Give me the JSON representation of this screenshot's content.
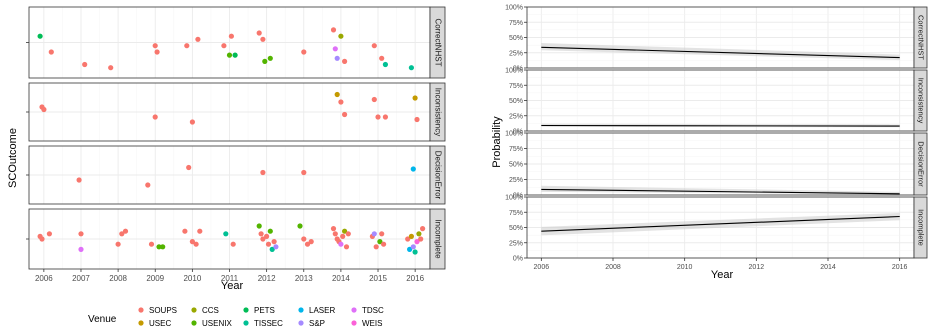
{
  "chart_data": [
    {
      "type": "scatter",
      "ylabel": "SCOutcome",
      "xlabel": "Year",
      "xlim": [
        2005.6,
        2016.4
      ],
      "x_ticks": [
        2006,
        2007,
        2008,
        2009,
        2010,
        2011,
        2012,
        2013,
        2014,
        2015,
        2016
      ],
      "grid": true,
      "legend": {
        "title": "Venue",
        "placement": "bottom",
        "entries": [
          {
            "name": "SOUPS",
            "color": "#F8766D"
          },
          {
            "name": "USEC",
            "color": "#C49A00"
          },
          {
            "name": "CCS",
            "color": "#99A800"
          },
          {
            "name": "USENIX",
            "color": "#53B400"
          },
          {
            "name": "PETS",
            "color": "#00BC56"
          },
          {
            "name": "TISSEC",
            "color": "#00C094"
          },
          {
            "name": "LASER",
            "color": "#00B6EB"
          },
          {
            "name": "S&P",
            "color": "#A58AFF"
          },
          {
            "name": "TDSC",
            "color": "#DF70F8"
          },
          {
            "name": "WEIS",
            "color": "#FB61D7"
          }
        ]
      },
      "facets": [
        {
          "label": "CorrectNHST",
          "points": [
            {
              "x": 2005.9,
              "y": 0.6,
              "venue": "PETS"
            },
            {
              "x": 2006.2,
              "y": 0.35,
              "venue": "SOUPS"
            },
            {
              "x": 2007.1,
              "y": 0.15,
              "venue": "SOUPS"
            },
            {
              "x": 2007.8,
              "y": 0.1,
              "venue": "SOUPS"
            },
            {
              "x": 2009.0,
              "y": 0.45,
              "venue": "SOUPS"
            },
            {
              "x": 2009.05,
              "y": 0.35,
              "venue": "SOUPS"
            },
            {
              "x": 2009.85,
              "y": 0.45,
              "venue": "SOUPS"
            },
            {
              "x": 2010.15,
              "y": 0.55,
              "venue": "SOUPS"
            },
            {
              "x": 2010.85,
              "y": 0.45,
              "venue": "SOUPS"
            },
            {
              "x": 2011.0,
              "y": 0.3,
              "venue": "USENIX"
            },
            {
              "x": 2011.05,
              "y": 0.6,
              "venue": "SOUPS"
            },
            {
              "x": 2011.15,
              "y": 0.3,
              "venue": "PETS"
            },
            {
              "x": 2011.8,
              "y": 0.65,
              "venue": "SOUPS"
            },
            {
              "x": 2011.9,
              "y": 0.55,
              "venue": "SOUPS"
            },
            {
              "x": 2011.95,
              "y": 0.2,
              "venue": "USENIX"
            },
            {
              "x": 2012.1,
              "y": 0.25,
              "venue": "USENIX"
            },
            {
              "x": 2013.0,
              "y": 0.35,
              "venue": "SOUPS"
            },
            {
              "x": 2013.8,
              "y": 0.7,
              "venue": "SOUPS"
            },
            {
              "x": 2013.85,
              "y": 0.4,
              "venue": "TDSC"
            },
            {
              "x": 2013.9,
              "y": 0.25,
              "venue": "S&P"
            },
            {
              "x": 2014.0,
              "y": 0.6,
              "venue": "CCS"
            },
            {
              "x": 2014.1,
              "y": 0.2,
              "venue": "SOUPS"
            },
            {
              "x": 2014.9,
              "y": 0.45,
              "venue": "SOUPS"
            },
            {
              "x": 2015.1,
              "y": 0.25,
              "venue": "SOUPS"
            },
            {
              "x": 2015.2,
              "y": 0.15,
              "venue": "TISSEC"
            },
            {
              "x": 2015.9,
              "y": 0.1,
              "venue": "TISSEC"
            }
          ]
        },
        {
          "label": "Inconsistency",
          "points": [
            {
              "x": 2005.95,
              "y": 0.6,
              "venue": "SOUPS"
            },
            {
              "x": 2006.0,
              "y": 0.55,
              "venue": "SOUPS"
            },
            {
              "x": 2009.0,
              "y": 0.4,
              "venue": "SOUPS"
            },
            {
              "x": 2010.0,
              "y": 0.3,
              "venue": "SOUPS"
            },
            {
              "x": 2013.9,
              "y": 0.85,
              "venue": "USEC"
            },
            {
              "x": 2014.0,
              "y": 0.7,
              "venue": "SOUPS"
            },
            {
              "x": 2014.1,
              "y": 0.45,
              "venue": "SOUPS"
            },
            {
              "x": 2014.9,
              "y": 0.75,
              "venue": "SOUPS"
            },
            {
              "x": 2015.0,
              "y": 0.4,
              "venue": "SOUPS"
            },
            {
              "x": 2015.2,
              "y": 0.4,
              "venue": "SOUPS"
            },
            {
              "x": 2016.0,
              "y": 0.78,
              "venue": "USEC"
            },
            {
              "x": 2016.05,
              "y": 0.35,
              "venue": "SOUPS"
            }
          ]
        },
        {
          "label": "DecisionError",
          "points": [
            {
              "x": 2006.95,
              "y": 0.4,
              "venue": "SOUPS"
            },
            {
              "x": 2008.8,
              "y": 0.3,
              "venue": "SOUPS"
            },
            {
              "x": 2009.9,
              "y": 0.65,
              "venue": "SOUPS"
            },
            {
              "x": 2011.9,
              "y": 0.55,
              "venue": "SOUPS"
            },
            {
              "x": 2013.0,
              "y": 0.55,
              "venue": "SOUPS"
            },
            {
              "x": 2015.95,
              "y": 0.62,
              "venue": "LASER"
            }
          ]
        },
        {
          "label": "Incomplete",
          "points": [
            {
              "x": 2005.9,
              "y": 0.55,
              "venue": "SOUPS"
            },
            {
              "x": 2005.95,
              "y": 0.5,
              "venue": "SOUPS"
            },
            {
              "x": 2006.15,
              "y": 0.6,
              "venue": "SOUPS"
            },
            {
              "x": 2007.0,
              "y": 0.6,
              "venue": "SOUPS"
            },
            {
              "x": 2007.0,
              "y": 0.3,
              "venue": "TDSC"
            },
            {
              "x": 2008.0,
              "y": 0.4,
              "venue": "SOUPS"
            },
            {
              "x": 2008.1,
              "y": 0.6,
              "venue": "SOUPS"
            },
            {
              "x": 2008.2,
              "y": 0.65,
              "venue": "SOUPS"
            },
            {
              "x": 2008.9,
              "y": 0.4,
              "venue": "SOUPS"
            },
            {
              "x": 2009.1,
              "y": 0.35,
              "venue": "USENIX"
            },
            {
              "x": 2009.2,
              "y": 0.35,
              "venue": "USENIX"
            },
            {
              "x": 2009.8,
              "y": 0.65,
              "venue": "SOUPS"
            },
            {
              "x": 2010.0,
              "y": 0.45,
              "venue": "SOUPS"
            },
            {
              "x": 2010.1,
              "y": 0.4,
              "venue": "SOUPS"
            },
            {
              "x": 2010.2,
              "y": 0.65,
              "venue": "SOUPS"
            },
            {
              "x": 2010.9,
              "y": 0.6,
              "venue": "TISSEC"
            },
            {
              "x": 2011.1,
              "y": 0.4,
              "venue": "SOUPS"
            },
            {
              "x": 2011.8,
              "y": 0.75,
              "venue": "USENIX"
            },
            {
              "x": 2011.85,
              "y": 0.6,
              "venue": "SOUPS"
            },
            {
              "x": 2011.9,
              "y": 0.5,
              "venue": "SOUPS"
            },
            {
              "x": 2012.0,
              "y": 0.55,
              "venue": "SOUPS"
            },
            {
              "x": 2012.05,
              "y": 0.4,
              "venue": "SOUPS"
            },
            {
              "x": 2012.1,
              "y": 0.65,
              "venue": "USENIX"
            },
            {
              "x": 2012.15,
              "y": 0.3,
              "venue": "TISSEC"
            },
            {
              "x": 2012.2,
              "y": 0.45,
              "venue": "SOUPS"
            },
            {
              "x": 2012.25,
              "y": 0.35,
              "venue": "S&P"
            },
            {
              "x": 2012.9,
              "y": 0.75,
              "venue": "USENIX"
            },
            {
              "x": 2013.0,
              "y": 0.5,
              "venue": "SOUPS"
            },
            {
              "x": 2013.1,
              "y": 0.4,
              "venue": "SOUPS"
            },
            {
              "x": 2013.2,
              "y": 0.45,
              "venue": "SOUPS"
            },
            {
              "x": 2013.8,
              "y": 0.7,
              "venue": "SOUPS"
            },
            {
              "x": 2013.85,
              "y": 0.6,
              "venue": "SOUPS"
            },
            {
              "x": 2013.9,
              "y": 0.5,
              "venue": "SOUPS"
            },
            {
              "x": 2013.95,
              "y": 0.45,
              "venue": "SOUPS"
            },
            {
              "x": 2014.0,
              "y": 0.4,
              "venue": "TDSC"
            },
            {
              "x": 2014.05,
              "y": 0.55,
              "venue": "SOUPS"
            },
            {
              "x": 2014.1,
              "y": 0.65,
              "venue": "CCS"
            },
            {
              "x": 2014.15,
              "y": 0.35,
              "venue": "SOUPS"
            },
            {
              "x": 2014.2,
              "y": 0.6,
              "venue": "SOUPS"
            },
            {
              "x": 2014.85,
              "y": 0.55,
              "venue": "SOUPS"
            },
            {
              "x": 2014.9,
              "y": 0.6,
              "venue": "S&P"
            },
            {
              "x": 2014.95,
              "y": 0.35,
              "venue": "SOUPS"
            },
            {
              "x": 2015.05,
              "y": 0.45,
              "venue": "USENIX"
            },
            {
              "x": 2015.1,
              "y": 0.6,
              "venue": "SOUPS"
            },
            {
              "x": 2015.15,
              "y": 0.4,
              "venue": "SOUPS"
            },
            {
              "x": 2015.8,
              "y": 0.5,
              "venue": "SOUPS"
            },
            {
              "x": 2015.85,
              "y": 0.3,
              "venue": "LASER"
            },
            {
              "x": 2015.9,
              "y": 0.55,
              "venue": "USEC"
            },
            {
              "x": 2015.95,
              "y": 0.35,
              "venue": "S&P"
            },
            {
              "x": 2016.0,
              "y": 0.25,
              "venue": "TISSEC"
            },
            {
              "x": 2016.05,
              "y": 0.45,
              "venue": "WEIS"
            },
            {
              "x": 2016.1,
              "y": 0.6,
              "venue": "CCS"
            },
            {
              "x": 2016.15,
              "y": 0.5,
              "venue": "SOUPS"
            },
            {
              "x": 2016.2,
              "y": 0.7,
              "venue": "SOUPS"
            }
          ]
        }
      ]
    },
    {
      "type": "line",
      "ylabel": "Probability",
      "xlabel": "Year",
      "xlim": [
        2005.6,
        2016.4
      ],
      "ylim": [
        0,
        1
      ],
      "x_ticks": [
        2006,
        2008,
        2010,
        2012,
        2014,
        2016
      ],
      "y_ticks": [
        "0%",
        "25%",
        "50%",
        "75%",
        "100%"
      ],
      "grid": true,
      "facets": [
        {
          "label": "CorrectNHST",
          "x": [
            2006,
            2016
          ],
          "y": [
            0.34,
            0.17
          ],
          "ci_lower": [
            0.29,
            0.13
          ],
          "ci_upper": [
            0.41,
            0.22
          ]
        },
        {
          "label": "Inconsistency",
          "x": [
            2006,
            2016
          ],
          "y": [
            0.09,
            0.08
          ],
          "ci_lower": [
            0.07,
            0.06
          ],
          "ci_upper": [
            0.12,
            0.11
          ]
        },
        {
          "label": "DecisionError",
          "x": [
            2006,
            2016
          ],
          "y": [
            0.09,
            0.02
          ],
          "ci_lower": [
            0.05,
            0.01
          ],
          "ci_upper": [
            0.15,
            0.05
          ]
        },
        {
          "label": "Incomplete",
          "x": [
            2006,
            2016
          ],
          "y": [
            0.44,
            0.68
          ],
          "ci_lower": [
            0.37,
            0.62
          ],
          "ci_upper": [
            0.51,
            0.74
          ]
        }
      ]
    }
  ]
}
